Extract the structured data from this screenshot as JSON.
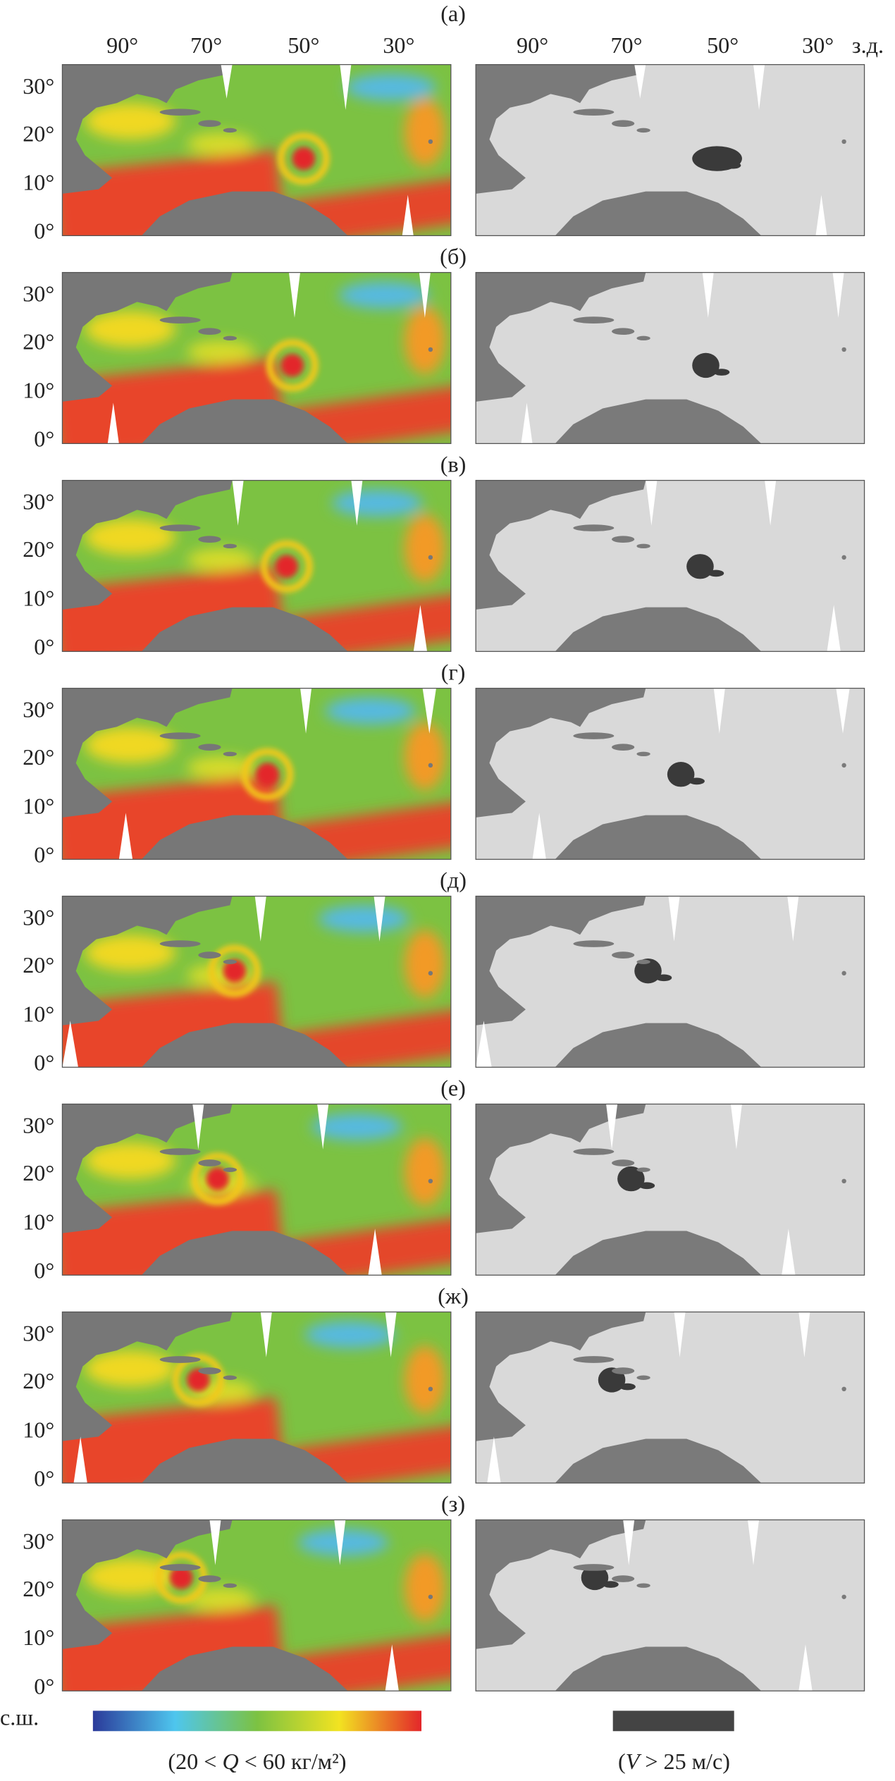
{
  "panels": [
    {
      "label": "(а)"
    },
    {
      "label": "(б)"
    },
    {
      "label": "(в)"
    },
    {
      "label": "(г)"
    },
    {
      "label": "(д)"
    },
    {
      "label": "(е)"
    },
    {
      "label": "(ж)"
    },
    {
      "label": "(з)"
    }
  ],
  "lon_ticks": [
    "90°",
    "70°",
    "50°",
    "30°"
  ],
  "lon_unit": "з.д.",
  "lat_ticks": [
    "30°",
    "20°",
    "10°",
    "0°"
  ],
  "lat_unit": "с.ш.",
  "legend": {
    "q_label": {
      "before": "(20 < ",
      "symbol": "Q",
      "after": " < 60 кг/м²)"
    },
    "v_label": {
      "before": "(",
      "symbol": "V",
      "after": " > 25 м/с)"
    }
  }
}
